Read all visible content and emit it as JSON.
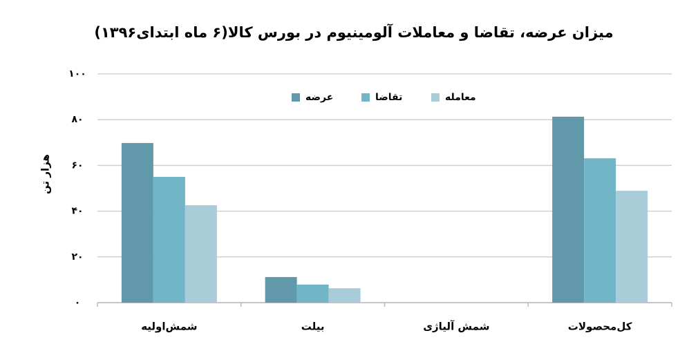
{
  "chart_data": {
    "type": "bar",
    "title": "میزان عرضه، تقاضا و معاملات آلومینیوم در بورس کالا(۶ ماه ابتدای۱۳۹۶)",
    "y_label": "هزار تن",
    "categories": [
      "شمش‌اولیه",
      "بیلت",
      "شمش آلیاژی",
      "کل‌محصولات"
    ],
    "series": [
      {
        "name": "عرضه",
        "color": "#6199aa",
        "values": [
          69.8,
          11.2,
          0,
          81.3
        ]
      },
      {
        "name": "تقاضا",
        "color": "#72b5c7",
        "values": [
          55,
          7.9,
          0,
          63.1
        ]
      },
      {
        "name": "معامله",
        "color": "#a8ccd8",
        "values": [
          42.6,
          6.3,
          0,
          48.9
        ]
      }
    ],
    "ylim": [
      0,
      100
    ],
    "yticks": [
      {
        "value": 0,
        "label": "۰"
      },
      {
        "value": 20,
        "label": "۲۰"
      },
      {
        "value": 40,
        "label": "۴۰"
      },
      {
        "value": 60,
        "label": "۶۰"
      },
      {
        "value": 80,
        "label": "۸۰"
      },
      {
        "value": 100,
        "label": "۱۰۰"
      }
    ],
    "grid": true,
    "legend": "top"
  }
}
